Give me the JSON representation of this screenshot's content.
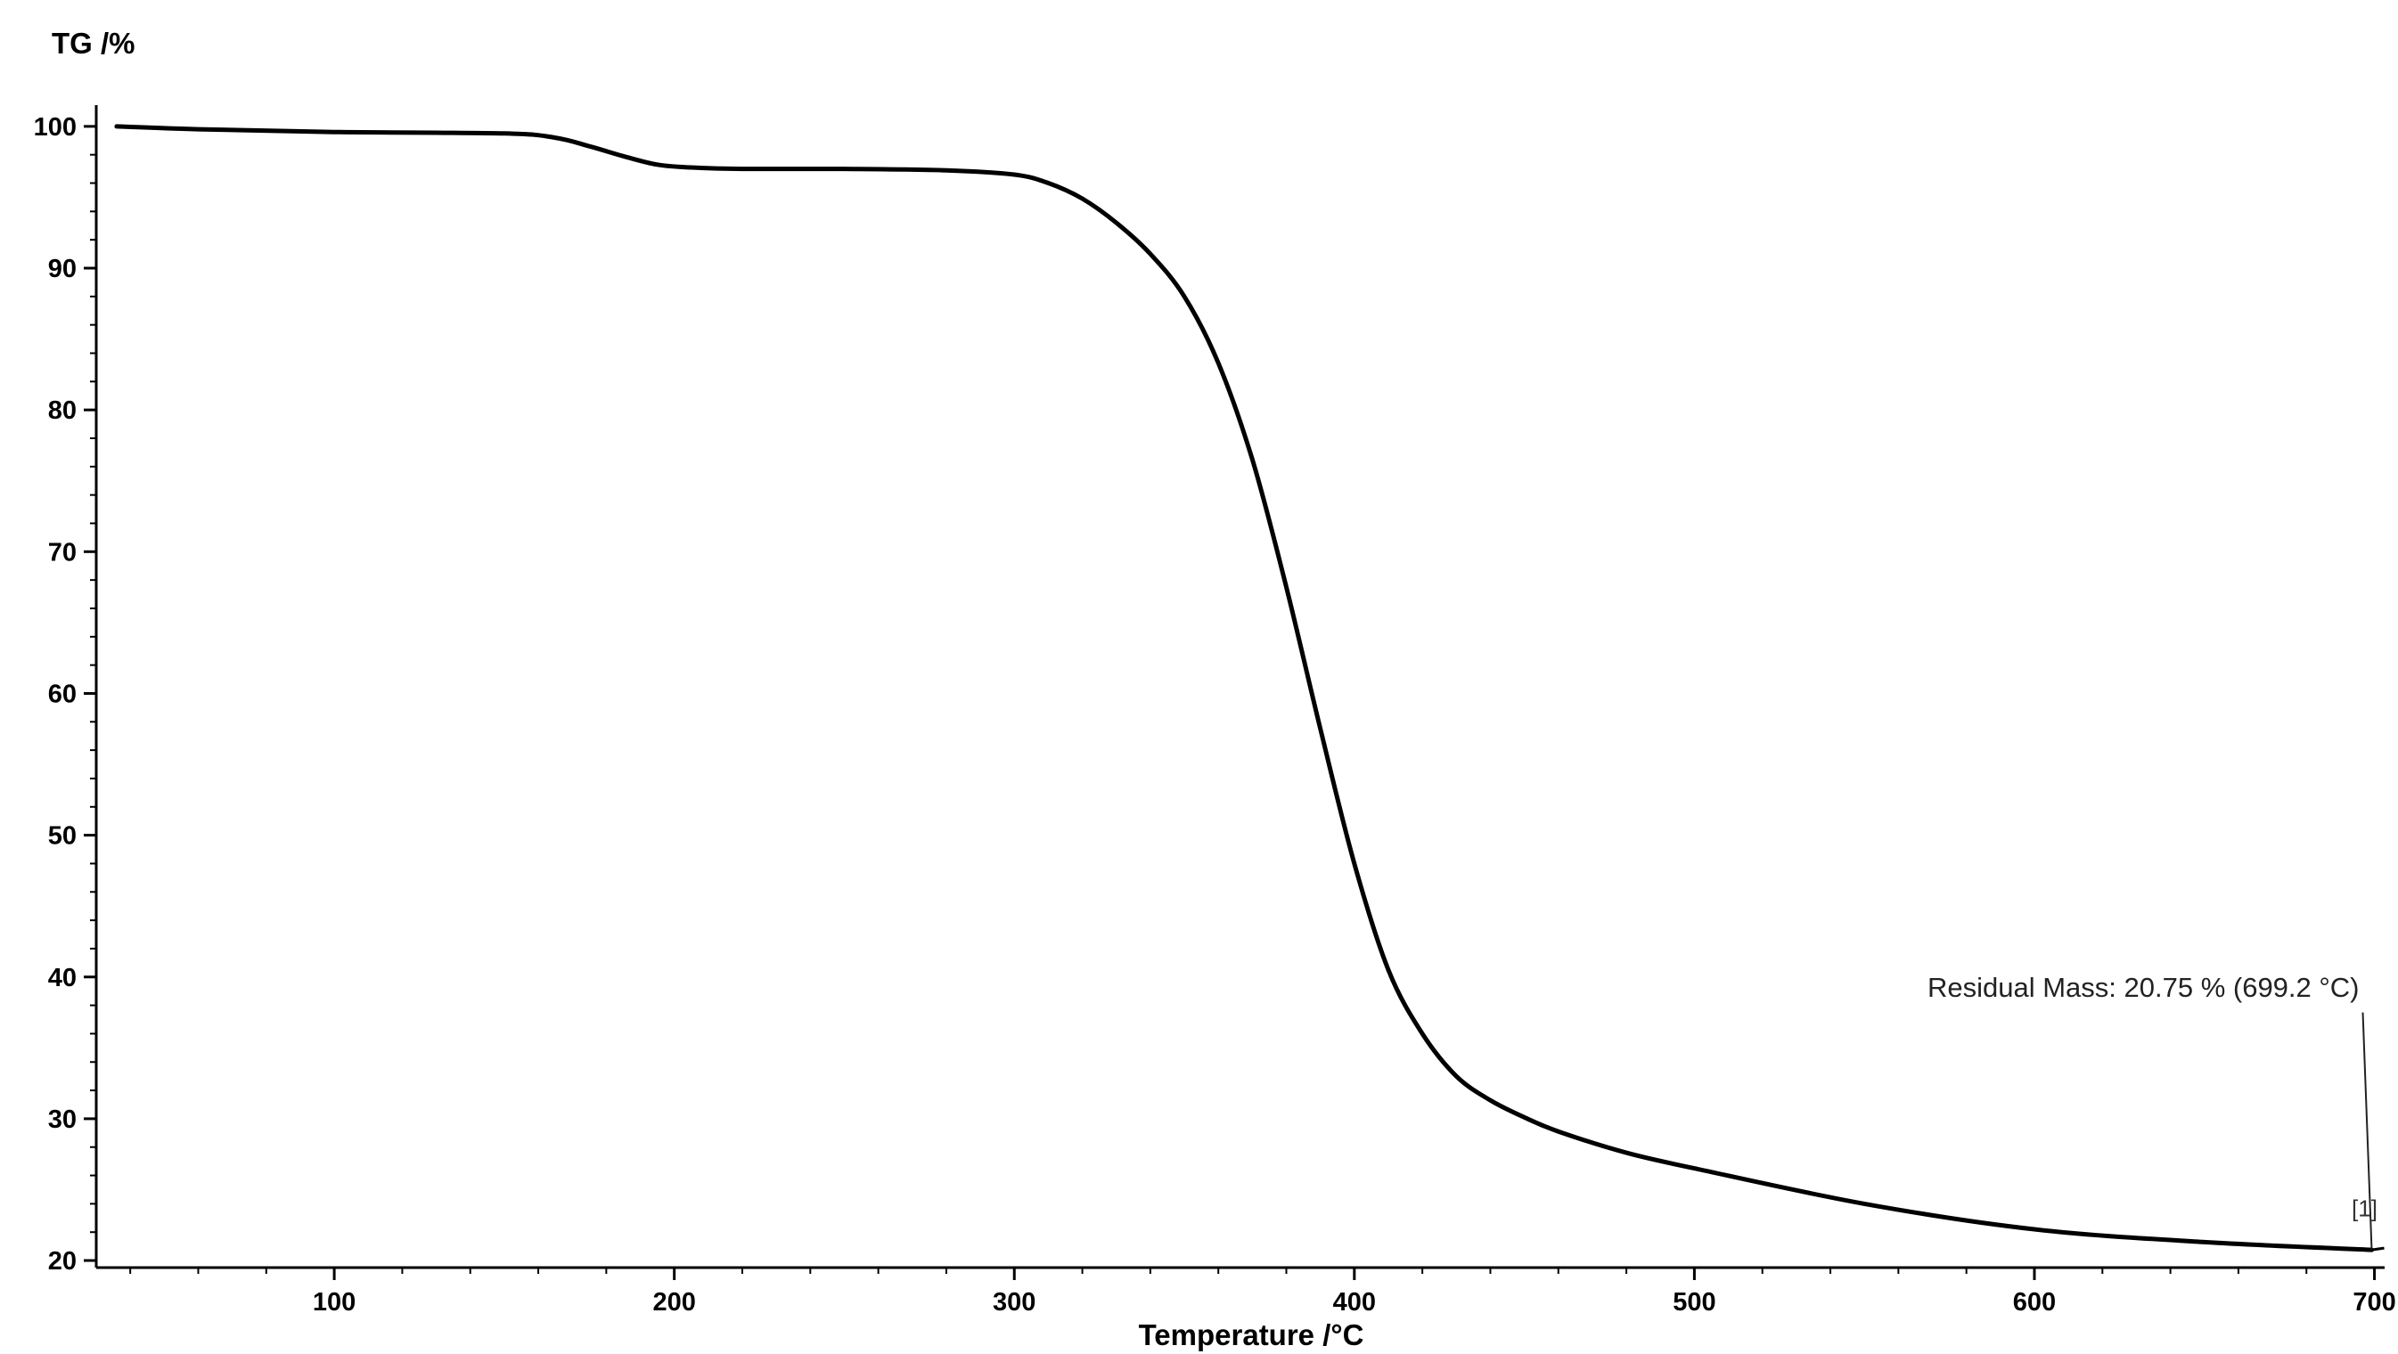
{
  "chart_data": {
    "type": "line",
    "ylabel": "TG /%",
    "xlabel": "Temperature /°C",
    "xlim": [
      30,
      703
    ],
    "ylim": [
      19.5,
      101.5
    ],
    "x_ticks": [
      100,
      200,
      300,
      400,
      500,
      600,
      700
    ],
    "y_ticks": [
      20,
      30,
      40,
      50,
      60,
      70,
      80,
      90,
      100
    ],
    "x_tick_labels": [
      "100",
      "200",
      "300",
      "400",
      "500",
      "600",
      "700"
    ],
    "y_tick_labels": [
      "20",
      "30",
      "40",
      "50",
      "60",
      "70",
      "80",
      "90",
      "100"
    ],
    "grid": false,
    "series": [
      {
        "color": "#000000",
        "x": [
          36,
          60,
          100,
          150,
          165,
          175,
          185,
          195,
          205,
          220,
          250,
          280,
          300,
          310,
          320,
          330,
          340,
          350,
          360,
          370,
          380,
          390,
          400,
          410,
          420,
          430,
          440,
          450,
          460,
          480,
          500,
          550,
          600,
          650,
          699.2
        ],
        "y": [
          100,
          99.8,
          99.6,
          99.5,
          99.2,
          98.6,
          97.9,
          97.3,
          97.1,
          97.0,
          97.0,
          96.9,
          96.6,
          96.0,
          94.9,
          93.2,
          91.0,
          88.0,
          83.3,
          76.5,
          67.5,
          57.5,
          48.0,
          40.5,
          36.0,
          33.0,
          31.3,
          30.1,
          29.1,
          27.6,
          26.5,
          24.0,
          22.2,
          21.3,
          20.75
        ]
      }
    ],
    "annotations": [
      {
        "text": "Residual Mass: 20.75 % (699.2 °C)",
        "x": 699.2,
        "y": 20.75
      },
      {
        "text": "[1]",
        "x": 699.2,
        "y": 20.75
      }
    ]
  }
}
